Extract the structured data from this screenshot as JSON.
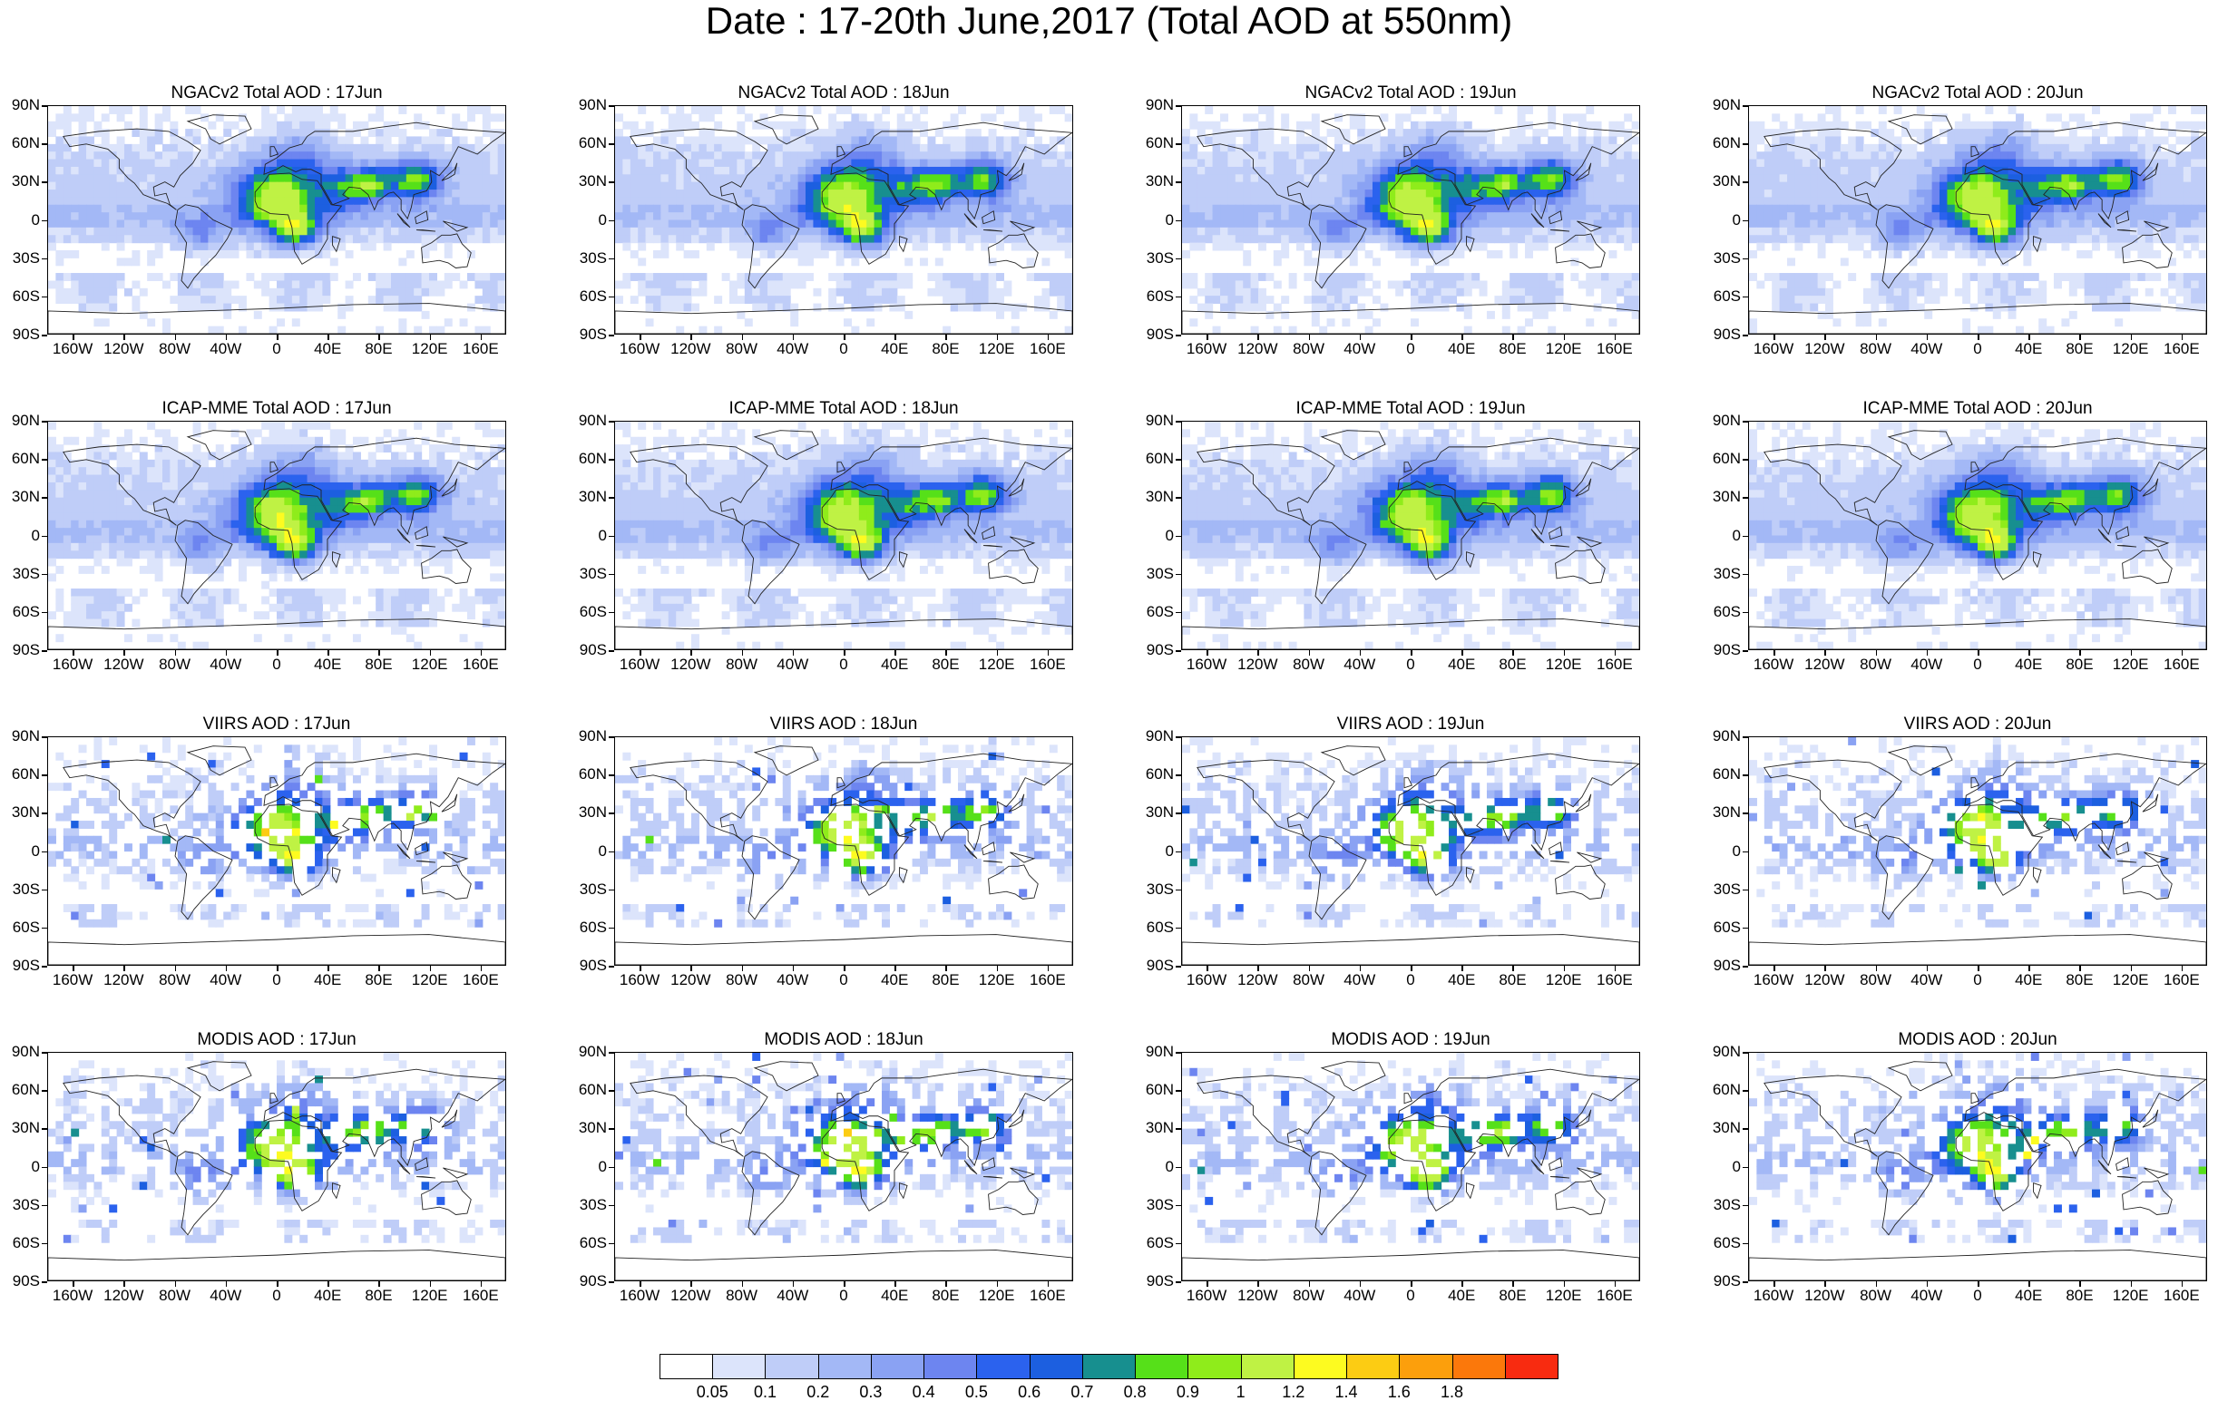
{
  "title": "Date : 17-20th June,2017 (Total AOD at 550nm)",
  "panels": [
    {
      "title": "NGACv2 Total AOD : 17Jun",
      "kind": "model",
      "seed": 11
    },
    {
      "title": "NGACv2 Total AOD : 18Jun",
      "kind": "model",
      "seed": 12
    },
    {
      "title": "NGACv2 Total AOD : 19Jun",
      "kind": "model",
      "seed": 13
    },
    {
      "title": "NGACv2 Total AOD : 20Jun",
      "kind": "model",
      "seed": 14
    },
    {
      "title": "ICAP-MME Total AOD : 17Jun",
      "kind": "model",
      "seed": 21
    },
    {
      "title": "ICAP-MME Total AOD : 18Jun",
      "kind": "model",
      "seed": 22
    },
    {
      "title": "ICAP-MME Total AOD : 19Jun",
      "kind": "model",
      "seed": 23
    },
    {
      "title": "ICAP-MME Total AOD : 20Jun",
      "kind": "model",
      "seed": 24
    },
    {
      "title": "VIIRS AOD : 17Jun",
      "kind": "satellite",
      "seed": 31
    },
    {
      "title": "VIIRS AOD : 18Jun",
      "kind": "satellite",
      "seed": 32
    },
    {
      "title": "VIIRS AOD : 19Jun",
      "kind": "satellite",
      "seed": 33
    },
    {
      "title": "VIIRS AOD : 20Jun",
      "kind": "satellite",
      "seed": 34
    },
    {
      "title": "MODIS AOD : 17Jun",
      "kind": "satellite",
      "seed": 41
    },
    {
      "title": "MODIS AOD : 18Jun",
      "kind": "satellite",
      "seed": 42
    },
    {
      "title": "MODIS AOD : 19Jun",
      "kind": "satellite",
      "seed": 43
    },
    {
      "title": "MODIS AOD : 20Jun",
      "kind": "satellite",
      "seed": 44
    }
  ],
  "lat_labels": [
    "90N",
    "60N",
    "30N",
    "0",
    "30S",
    "60S",
    "90S"
  ],
  "lon_labels": [
    "160W",
    "120W",
    "80W",
    "40W",
    "0",
    "40E",
    "80E",
    "120E",
    "160E"
  ],
  "colorbar": {
    "colors": [
      "#ffffff",
      "#dce4fb",
      "#bfcdf8",
      "#a3b8f6",
      "#8aa2f3",
      "#6d85f0",
      "#2b62ee",
      "#1c5fe0",
      "#178f8f",
      "#56e019",
      "#8fec1b",
      "#bff244",
      "#fdfb20",
      "#fccc13",
      "#fc9f0c",
      "#fb780b",
      "#f82b10"
    ],
    "labels": [
      "0.05",
      "0.1",
      "0.2",
      "0.3",
      "0.4",
      "0.5",
      "0.6",
      "0.7",
      "0.8",
      "0.9",
      "1",
      "1.2",
      "1.4",
      "1.6",
      "1.8"
    ]
  }
}
